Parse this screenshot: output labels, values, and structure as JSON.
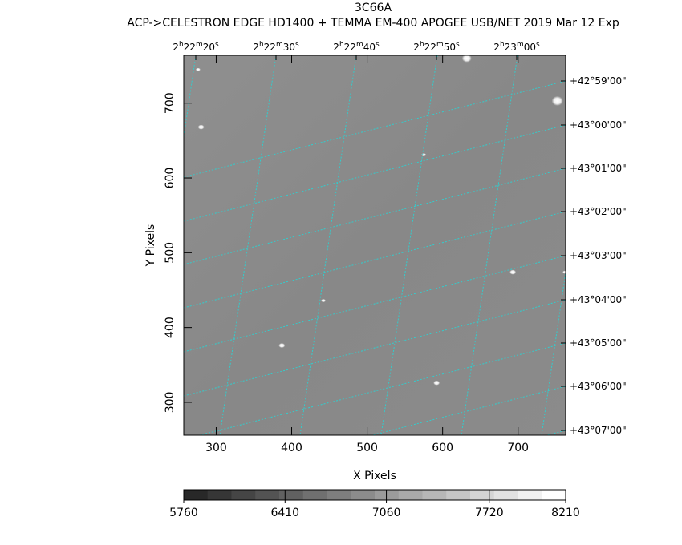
{
  "header": {
    "object_name": "3C66A",
    "subtitle": "ACP->CELESTRON EDGE HD1400 + TEMMA EM-400 APOGEE USB/NET   2019 Mar 12    Exp"
  },
  "chart_data": {
    "type": "heatmap",
    "xlabel": "X Pixels",
    "ylabel": "Y Pixels",
    "xlim": [
      257,
      763
    ],
    "ylim": [
      256,
      764
    ],
    "x_ticks": [
      300,
      400,
      500,
      600,
      700
    ],
    "y_ticks": [
      300,
      400,
      500,
      600,
      700
    ],
    "ra_labels": [
      {
        "h": "2",
        "m": "22",
        "s": "20"
      },
      {
        "h": "2",
        "m": "22",
        "s": "30"
      },
      {
        "h": "2",
        "m": "22",
        "s": "40"
      },
      {
        "h": "2",
        "m": "22",
        "s": "50"
      },
      {
        "h": "2",
        "m": "23",
        "s": "00"
      }
    ],
    "dec_labels": [
      "+42°59'00\"",
      "+43°00'00\"",
      "+43°01'00\"",
      "+43°02'00\"",
      "+43°03'00\"",
      "+43°04'00\"",
      "+43°05'00\"",
      "+43°06'00\"",
      "+43°07'00\""
    ],
    "colorbar": {
      "min": 5760,
      "max": 8210,
      "tick_labels": [
        "5760",
        "6410",
        "7060",
        "7720",
        "8210"
      ],
      "tick_values": [
        5760,
        6410,
        7060,
        7720,
        8210
      ],
      "levels": 16
    },
    "grid_color": "#33cccc",
    "stars": [
      {
        "x": 632,
        "y": 760,
        "size": 5
      },
      {
        "x": 752,
        "y": 703,
        "size": 6
      },
      {
        "x": 280,
        "y": 668,
        "size": 3
      },
      {
        "x": 575,
        "y": 631,
        "size": 2
      },
      {
        "x": 693,
        "y": 474,
        "size": 3
      },
      {
        "x": 387,
        "y": 376,
        "size": 3
      },
      {
        "x": 592,
        "y": 326,
        "size": 3
      },
      {
        "x": 276,
        "y": 745,
        "size": 2
      },
      {
        "x": 762,
        "y": 474,
        "size": 2
      },
      {
        "x": 442,
        "y": 436,
        "size": 2
      }
    ]
  }
}
